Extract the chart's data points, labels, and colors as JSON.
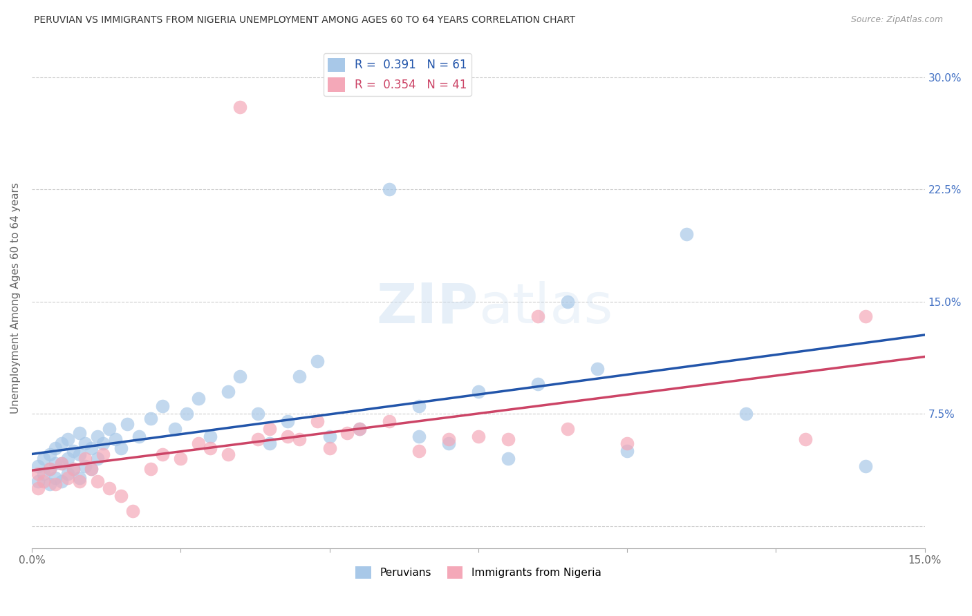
{
  "title": "PERUVIAN VS IMMIGRANTS FROM NIGERIA UNEMPLOYMENT AMONG AGES 60 TO 64 YEARS CORRELATION CHART",
  "source": "Source: ZipAtlas.com",
  "ylabel": "Unemployment Among Ages 60 to 64 years",
  "legend_blue_r": "0.391",
  "legend_blue_n": "61",
  "legend_pink_r": "0.354",
  "legend_pink_n": "41",
  "legend_labels": [
    "Peruvians",
    "Immigrants from Nigeria"
  ],
  "blue_color": "#A8C8E8",
  "pink_color": "#F4A8B8",
  "line_blue": "#2255AA",
  "line_pink": "#CC4466",
  "watermark": "ZIPatlas",
  "yticks": [
    0.0,
    0.075,
    0.15,
    0.225,
    0.3
  ],
  "ytick_labels": [
    "",
    "7.5%",
    "15.0%",
    "22.5%",
    "30.0%"
  ],
  "xlim": [
    0.0,
    0.15
  ],
  "ylim": [
    -0.015,
    0.32
  ],
  "blue_x": [
    0.001,
    0.001,
    0.002,
    0.002,
    0.003,
    0.003,
    0.003,
    0.004,
    0.004,
    0.004,
    0.005,
    0.005,
    0.005,
    0.006,
    0.006,
    0.006,
    0.007,
    0.007,
    0.008,
    0.008,
    0.008,
    0.009,
    0.009,
    0.01,
    0.01,
    0.011,
    0.011,
    0.012,
    0.013,
    0.014,
    0.015,
    0.016,
    0.018,
    0.02,
    0.022,
    0.024,
    0.026,
    0.028,
    0.03,
    0.033,
    0.035,
    0.038,
    0.04,
    0.043,
    0.045,
    0.048,
    0.05,
    0.055,
    0.06,
    0.065,
    0.065,
    0.07,
    0.075,
    0.08,
    0.085,
    0.09,
    0.095,
    0.1,
    0.11,
    0.12,
    0.14
  ],
  "blue_y": [
    0.03,
    0.04,
    0.035,
    0.045,
    0.028,
    0.038,
    0.048,
    0.032,
    0.042,
    0.052,
    0.03,
    0.042,
    0.055,
    0.035,
    0.045,
    0.058,
    0.038,
    0.05,
    0.032,
    0.048,
    0.062,
    0.04,
    0.055,
    0.038,
    0.052,
    0.045,
    0.06,
    0.055,
    0.065,
    0.058,
    0.052,
    0.068,
    0.06,
    0.072,
    0.08,
    0.065,
    0.075,
    0.085,
    0.06,
    0.09,
    0.1,
    0.075,
    0.055,
    0.07,
    0.1,
    0.11,
    0.06,
    0.065,
    0.225,
    0.06,
    0.08,
    0.055,
    0.09,
    0.045,
    0.095,
    0.15,
    0.105,
    0.05,
    0.195,
    0.075,
    0.04
  ],
  "pink_x": [
    0.001,
    0.001,
    0.002,
    0.003,
    0.004,
    0.005,
    0.006,
    0.007,
    0.008,
    0.009,
    0.01,
    0.011,
    0.012,
    0.013,
    0.015,
    0.017,
    0.02,
    0.022,
    0.025,
    0.028,
    0.03,
    0.033,
    0.035,
    0.038,
    0.04,
    0.043,
    0.045,
    0.048,
    0.05,
    0.053,
    0.055,
    0.06,
    0.065,
    0.07,
    0.075,
    0.08,
    0.085,
    0.09,
    0.1,
    0.13,
    0.14
  ],
  "pink_y": [
    0.025,
    0.035,
    0.03,
    0.038,
    0.028,
    0.042,
    0.032,
    0.038,
    0.03,
    0.045,
    0.038,
    0.03,
    0.048,
    0.025,
    0.02,
    0.01,
    0.038,
    0.048,
    0.045,
    0.055,
    0.052,
    0.048,
    0.28,
    0.058,
    0.065,
    0.06,
    0.058,
    0.07,
    0.052,
    0.062,
    0.065,
    0.07,
    0.05,
    0.058,
    0.06,
    0.058,
    0.14,
    0.065,
    0.055,
    0.058,
    0.14
  ]
}
